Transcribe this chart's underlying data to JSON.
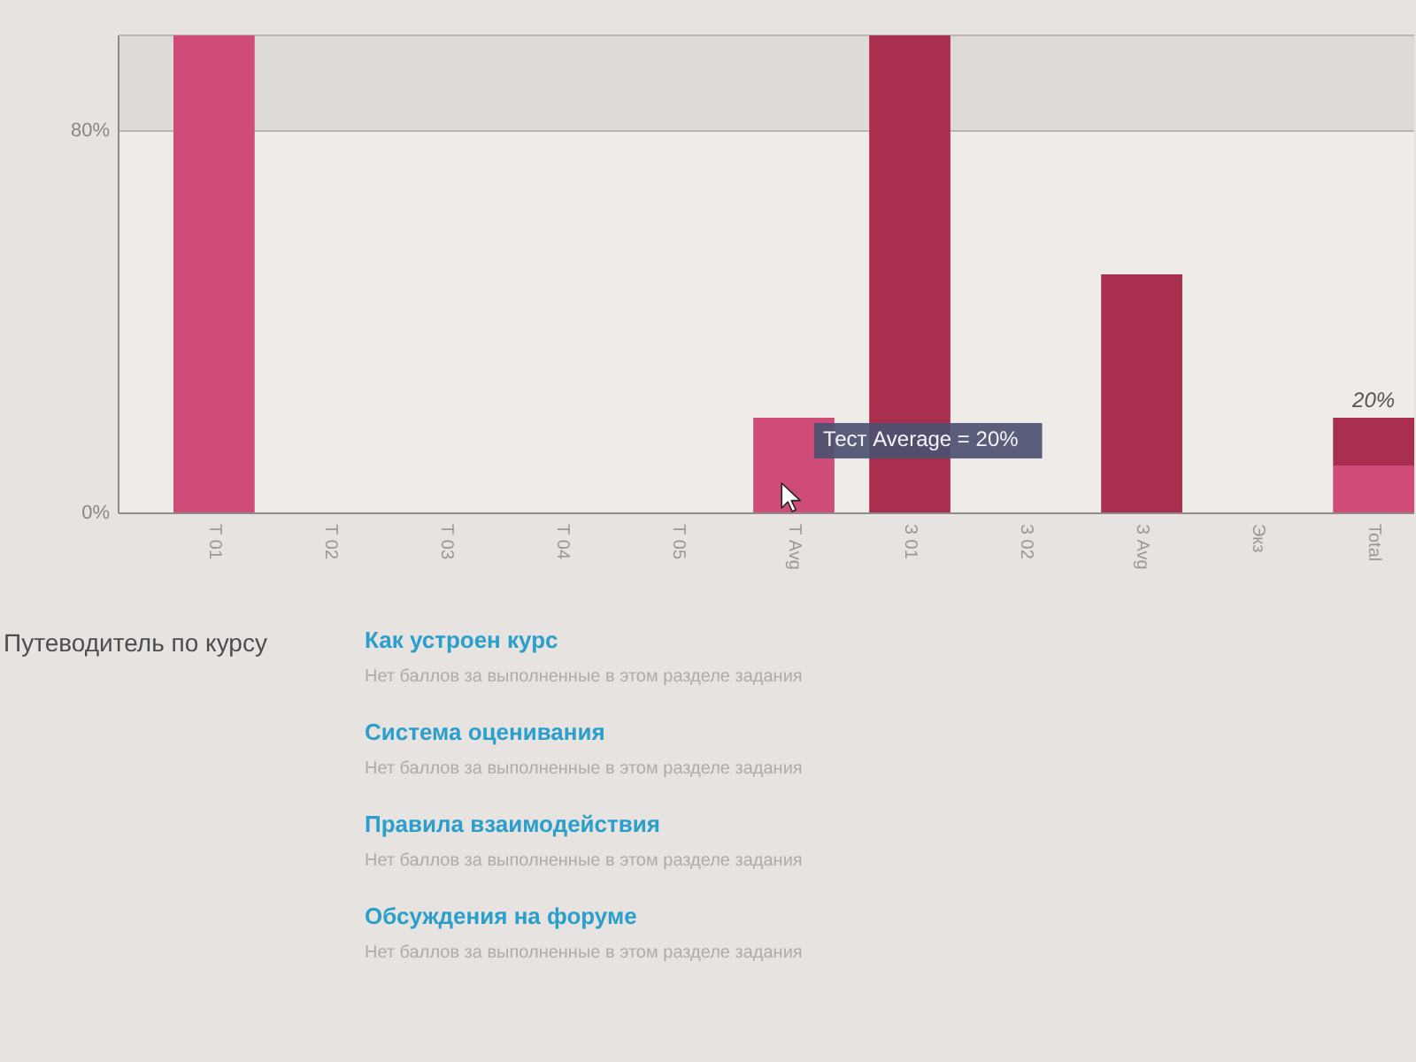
{
  "chart_data": {
    "type": "bar",
    "stacked": true,
    "categories": [
      "Т 01",
      "Т 02",
      "Т 03",
      "Т 04",
      "Т 05",
      "Т Avg",
      "З 01",
      "З 02",
      "З Avg",
      "Экз",
      "Total"
    ],
    "series": [
      {
        "color": "#cf4c78",
        "values": [
          100,
          0,
          0,
          0,
          0,
          20,
          null,
          null,
          null,
          null,
          10
        ]
      },
      {
        "color": "#a82f4d",
        "values": [
          null,
          null,
          null,
          null,
          null,
          null,
          100,
          0,
          50,
          0,
          10
        ]
      }
    ],
    "ylim": [
      0,
      100
    ],
    "yticks": [
      {
        "value": 0,
        "label": "0%"
      },
      {
        "value": 80,
        "label": "80%"
      }
    ],
    "grid": "y",
    "bands": [
      {
        "axis": "y",
        "from": 80,
        "to": 100,
        "color": "#dedad7"
      }
    ],
    "totals": [
      null,
      null,
      null,
      null,
      null,
      null,
      null,
      null,
      null,
      null,
      "20%"
    ],
    "annotations": [
      {
        "text": "Тест Average = 20%",
        "x": "Т Avg",
        "y": 20
      },
      "Путеводитель по курсу",
      "Как устроен курс",
      "Нет баллов за выполненные в этом разделе задания",
      "Система оценивания",
      "Нет баллов за выполненные в этом разделе задания",
      "Правила взаимодействия",
      "Нет баллов за выполненные в этом разделе задания",
      "Обсуждения на форуме",
      "Нет баллов за выполненные в этом разделе задания"
    ]
  }
}
